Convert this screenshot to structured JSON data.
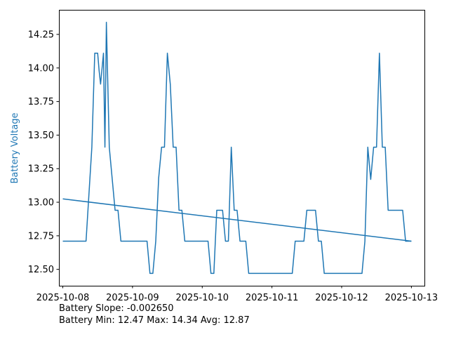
{
  "chart_data": {
    "type": "line",
    "ylabel": "Battery Voltage",
    "xlabel": "",
    "title": "",
    "grid": false,
    "x_type": "date",
    "xlim": [
      "2025-10-07T22:40",
      "2025-10-13T04:30"
    ],
    "ylim": [
      12.378,
      14.433
    ],
    "xticks": [
      "2025-10-08",
      "2025-10-09",
      "2025-10-10",
      "2025-10-11",
      "2025-10-12",
      "2025-10-13"
    ],
    "yticks": [
      12.5,
      12.75,
      13.0,
      13.25,
      13.5,
      13.75,
      14.0,
      14.25
    ],
    "ytick_labels": [
      "12.50",
      "12.75",
      "13.00",
      "13.25",
      "13.50",
      "13.75",
      "14.00",
      "14.25"
    ],
    "series": [
      {
        "color": "#1f77b4",
        "x": [
          "2025-10-08T00:00",
          "2025-10-08T08:00",
          "2025-10-08T10:00",
          "2025-10-08T11:00",
          "2025-10-08T12:00",
          "2025-10-08T12:30",
          "2025-10-08T13:00",
          "2025-10-08T14:00",
          "2025-10-08T14:30",
          "2025-10-08T15:00",
          "2025-10-08T16:00",
          "2025-10-08T18:00",
          "2025-10-08T19:00",
          "2025-10-08T20:00",
          "2025-10-09T05:00",
          "2025-10-09T06:00",
          "2025-10-09T07:00",
          "2025-10-09T08:00",
          "2025-10-09T09:00",
          "2025-10-09T10:00",
          "2025-10-09T11:00",
          "2025-10-09T12:00",
          "2025-10-09T13:00",
          "2025-10-09T14:00",
          "2025-10-09T15:00",
          "2025-10-09T16:00",
          "2025-10-09T17:00",
          "2025-10-09T18:00",
          "2025-10-10T02:00",
          "2025-10-10T03:00",
          "2025-10-10T04:00",
          "2025-10-10T05:00",
          "2025-10-10T07:00",
          "2025-10-10T08:00",
          "2025-10-10T09:00",
          "2025-10-10T10:00",
          "2025-10-10T11:00",
          "2025-10-10T12:00",
          "2025-10-10T13:00",
          "2025-10-10T14:00",
          "2025-10-10T15:00",
          "2025-10-10T16:00",
          "2025-10-10T17:00",
          "2025-10-11T07:00",
          "2025-10-11T08:00",
          "2025-10-11T11:00",
          "2025-10-11T12:00",
          "2025-10-11T15:00",
          "2025-10-11T16:00",
          "2025-10-11T17:00",
          "2025-10-11T18:00",
          "2025-10-12T07:00",
          "2025-10-12T08:00",
          "2025-10-12T09:00",
          "2025-10-12T10:00",
          "2025-10-12T11:00",
          "2025-10-12T12:00",
          "2025-10-12T13:00",
          "2025-10-12T14:00",
          "2025-10-12T15:00",
          "2025-10-12T16:00",
          "2025-10-12T17:00",
          "2025-10-12T18:00",
          "2025-10-12T21:00",
          "2025-10-12T22:00",
          "2025-10-13T00:00"
        ],
        "y": [
          12.71,
          12.71,
          13.41,
          14.11,
          14.11,
          13.98,
          13.88,
          14.11,
          13.41,
          14.34,
          13.41,
          12.94,
          12.94,
          12.71,
          12.71,
          12.47,
          12.47,
          12.71,
          13.18,
          13.41,
          13.41,
          14.11,
          13.88,
          13.41,
          13.41,
          12.94,
          12.94,
          12.71,
          12.71,
          12.47,
          12.47,
          12.94,
          12.94,
          12.71,
          12.71,
          13.41,
          12.94,
          12.94,
          12.71,
          12.71,
          12.71,
          12.47,
          12.47,
          12.47,
          12.71,
          12.71,
          12.94,
          12.94,
          12.71,
          12.71,
          12.47,
          12.47,
          12.71,
          13.41,
          13.17,
          13.41,
          13.41,
          14.11,
          13.41,
          13.41,
          12.94,
          12.94,
          12.94,
          12.94,
          12.71,
          12.71
        ]
      },
      {
        "color": "#1f77b4",
        "x": [
          "2025-10-08T00:00",
          "2025-10-13T00:00"
        ],
        "y": [
          13.025,
          12.71
        ]
      }
    ]
  },
  "footer": {
    "slope_text": "Battery Slope: -0.002650",
    "stats_text": "Battery Min: 12.47 Max: 14.34 Avg: 12.87"
  }
}
